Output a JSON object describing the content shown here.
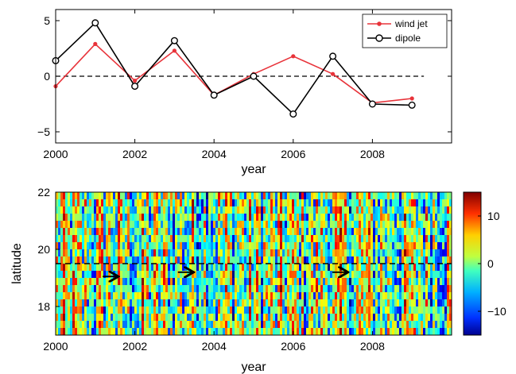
{
  "chart_data": [
    {
      "type": "line",
      "xlabel": "year",
      "ylabel": "",
      "xlim": [
        2000,
        2010
      ],
      "ylim": [
        -6,
        6
      ],
      "xticks": [
        2000,
        2002,
        2004,
        2006,
        2008
      ],
      "yticks": [
        5,
        0,
        -5
      ],
      "ytick_labels": [
        "5",
        "0",
        "−5"
      ],
      "reference_line": {
        "y": 0,
        "style": "dashed",
        "color": "#000000"
      },
      "legend_position": "top-right",
      "x": [
        2000,
        2001,
        2002,
        2003,
        2004,
        2005,
        2006,
        2007,
        2008,
        2009
      ],
      "series": [
        {
          "name": "wind jet",
          "color": "#e8333a",
          "marker": "filled-dot",
          "values": [
            -0.9,
            2.9,
            -0.4,
            2.3,
            -1.7,
            0.2,
            1.8,
            0.2,
            -2.4,
            -2.0
          ]
        },
        {
          "name": "dipole",
          "color": "#000000",
          "marker": "open-circle",
          "values": [
            1.4,
            4.8,
            -0.9,
            3.2,
            -1.7,
            0.0,
            -3.4,
            1.8,
            -2.5,
            -2.6
          ]
        }
      ]
    },
    {
      "type": "heatmap",
      "xlabel": "year",
      "ylabel": "latitude",
      "xlim": [
        2000,
        2010
      ],
      "ylim": [
        17,
        22
      ],
      "xticks": [
        2000,
        2002,
        2004,
        2006,
        2008
      ],
      "yticks": [
        18,
        20,
        22
      ],
      "colorbar": {
        "range": [
          -15,
          15
        ],
        "ticks": [
          10,
          0,
          -10
        ],
        "tick_labels": [
          "10",
          "0",
          "−10"
        ],
        "colormap": "jet"
      },
      "reference_line": {
        "y": 19.5,
        "style": "dashed",
        "color": "#000000"
      },
      "arrows": [
        {
          "x": 2001.55,
          "y": 19.05,
          "direction": "right"
        },
        {
          "x": 2003.45,
          "y": 19.2,
          "direction": "right"
        },
        {
          "x": 2007.35,
          "y": 19.2,
          "direction": "right"
        }
      ]
    }
  ]
}
